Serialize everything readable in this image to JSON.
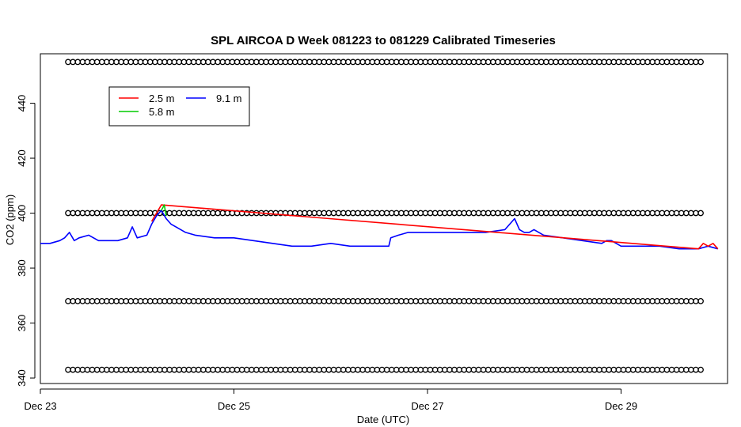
{
  "chart_data": {
    "type": "line",
    "title": "SPL AIRCOA D  Week 081223 to 081229  Calibrated Timeseries",
    "xlabel": "Date (UTC)",
    "ylabel": "CO2 (ppm)",
    "xlim": [
      0,
      7.1
    ],
    "ylim": [
      338,
      458
    ],
    "x_ticks": [
      {
        "value": 0,
        "label": "Dec 23"
      },
      {
        "value": 2,
        "label": "Dec 25"
      },
      {
        "value": 4,
        "label": "Dec 27"
      },
      {
        "value": 6,
        "label": "Dec 29"
      }
    ],
    "y_ticks": [
      340,
      360,
      380,
      400,
      420,
      440
    ],
    "legend": {
      "placement": "top-left",
      "entries": [
        {
          "label": "2.5 m",
          "color": "#ff0000"
        },
        {
          "label": "5.8 m",
          "color": "#00cc00"
        },
        {
          "label": "9.1 m",
          "color": "#0000ff"
        }
      ]
    },
    "series": [
      {
        "name": "9.1 m",
        "color": "#0000ff",
        "x": [
          0,
          0.1,
          0.2,
          0.25,
          0.3,
          0.35,
          0.4,
          0.5,
          0.6,
          0.7,
          0.8,
          0.9,
          0.95,
          1.0,
          1.1,
          1.15,
          1.2,
          1.25,
          1.3,
          1.35,
          1.4,
          1.5,
          1.6,
          1.8,
          2.0,
          2.2,
          2.4,
          2.6,
          2.8,
          3.0,
          3.2,
          3.4,
          3.6,
          3.62,
          3.7,
          3.8,
          4.0,
          4.2,
          4.4,
          4.6,
          4.8,
          4.9,
          4.95,
          5.0,
          5.05,
          5.1,
          5.2,
          5.4,
          5.6,
          5.8,
          5.85,
          5.9,
          5.95,
          6.0,
          6.2,
          6.4,
          6.6,
          6.8,
          6.9,
          7.0
        ],
        "values": [
          389,
          389,
          390,
          391,
          393,
          390,
          391,
          392,
          390,
          390,
          390,
          391,
          395,
          391,
          392,
          396,
          399,
          401,
          398,
          396,
          395,
          393,
          392,
          391,
          391,
          390,
          389,
          388,
          388,
          389,
          388,
          388,
          388,
          391,
          392,
          393,
          393,
          393,
          393,
          393,
          394,
          398,
          394,
          393,
          393,
          394,
          392,
          391,
          390,
          389,
          390,
          390,
          389,
          388,
          388,
          388,
          387,
          387,
          388,
          387
        ]
      },
      {
        "name": "2.5 m",
        "color": "#ff0000",
        "x": [
          1.15,
          1.2,
          1.25,
          6.8,
          6.85,
          6.9,
          6.95,
          7.0
        ],
        "values": [
          397,
          400,
          403,
          387,
          389,
          388,
          389,
          387
        ]
      },
      {
        "name": "5.8 m",
        "color": "#00cc00",
        "x": [
          1.25,
          1.28,
          1.3
        ],
        "values": [
          401,
          403,
          399
        ]
      }
    ],
    "marker_rows": [
      343,
      368,
      400,
      455
    ]
  }
}
